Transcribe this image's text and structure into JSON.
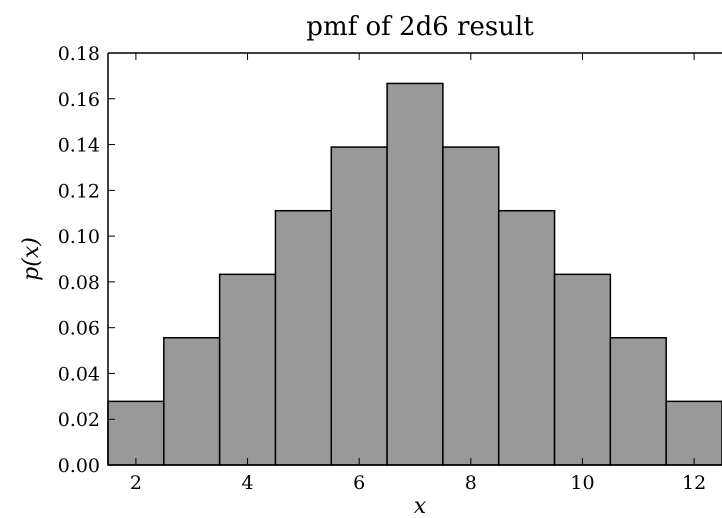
{
  "chart_data": {
    "type": "bar",
    "title": "pmf of 2d6 result",
    "xlabel": "x",
    "ylabel": "p(x)",
    "categories": [
      2,
      3,
      4,
      5,
      6,
      7,
      8,
      9,
      10,
      11,
      12
    ],
    "values": [
      0.0278,
      0.0556,
      0.0833,
      0.1111,
      0.1389,
      0.1667,
      0.1389,
      0.1111,
      0.0833,
      0.0556,
      0.0278
    ],
    "xlim": [
      1.5,
      12.5
    ],
    "ylim": [
      0,
      0.18
    ],
    "xticks": [
      "2",
      "4",
      "6",
      "8",
      "10",
      "12"
    ],
    "yticks": [
      "0.00",
      "0.02",
      "0.04",
      "0.06",
      "0.08",
      "0.10",
      "0.12",
      "0.14",
      "0.16",
      "0.18"
    ],
    "bar_color": "#999999",
    "edge_color": "#000000",
    "grid": false
  }
}
